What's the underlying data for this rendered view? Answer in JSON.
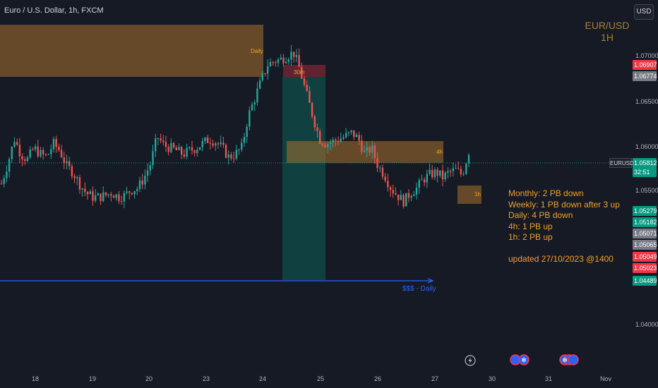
{
  "header": {
    "symbol_title": "Euro / U.S. Dollar, 1h, FXCM",
    "currency_button": "USD"
  },
  "watermark": {
    "line1": "EUR/USD",
    "line2": "1H"
  },
  "price_axis": {
    "ticks": [
      "1.07000",
      "1.06500",
      "1.06000",
      "1.05500",
      "1.04000"
    ],
    "tick_values": [
      1.07,
      1.065,
      1.06,
      1.055,
      1.04
    ]
  },
  "price_tags": [
    {
      "text": "1.06907",
      "color": "#f23645"
    },
    {
      "text": "1.06774",
      "color": "#787b86"
    },
    {
      "text": "1.05812",
      "color": "#089981"
    },
    {
      "text": "32:51",
      "color": "#089981"
    },
    {
      "text": "1.05279",
      "color": "#089981"
    },
    {
      "text": "1.05182",
      "color": "#089981"
    },
    {
      "text": "1.05071",
      "color": "#787b86"
    },
    {
      "text": "1.05065",
      "color": "#787b86"
    },
    {
      "text": "1.05049",
      "color": "#f23645"
    },
    {
      "text": "1.05023",
      "color": "#f23645"
    },
    {
      "text": "1.04489",
      "color": "#089981"
    }
  ],
  "pair_label": "EURUSD",
  "time_axis": [
    "18",
    "19",
    "20",
    "23",
    "24",
    "25",
    "26",
    "27",
    "30",
    "31",
    "Nov"
  ],
  "zones": {
    "daily": "Daily",
    "m30": "30m",
    "h4": "4h",
    "h1": "1h"
  },
  "liquidity_label": "$$$ - Daily",
  "notes": {
    "monthly": "Monthly: 2 PB down",
    "weekly": "Weekly: 1 PB down after 3 up",
    "daily": "Daily: 4 PB down",
    "h4": "4h: 1 PB up",
    "h1": "1h: 2 PB up",
    "updated": "updated 27/10/2023 @1400"
  },
  "colors": {
    "background": "#161a25",
    "up": "#26a69a",
    "down": "#ef5350",
    "zone": "#a7712c",
    "liquidity_line": "#2962ff",
    "note_text": "#f0a027"
  },
  "chart_data": {
    "type": "candlestick",
    "ylim": [
      1.0385,
      1.0723
    ],
    "x_labels": [
      "18",
      "19",
      "20",
      "23",
      "24",
      "25",
      "26",
      "27",
      "30",
      "31",
      "Nov"
    ],
    "close_path": [
      1.0545,
      1.0568,
      1.0595,
      1.0578,
      1.0572,
      1.0585,
      1.0578,
      1.0575,
      1.059,
      1.0582,
      1.0565,
      1.0558,
      1.0545,
      1.0535,
      1.053,
      1.053,
      1.0532,
      1.0535,
      1.053,
      1.0532,
      1.0538,
      1.054,
      1.0552,
      1.0568,
      1.0598,
      1.0588,
      1.0585,
      1.0582,
      1.0578,
      1.0582,
      1.0585,
      1.059,
      1.0595,
      1.0592,
      1.0585,
      1.0575,
      1.0578,
      1.0585,
      1.062,
      1.064,
      1.066,
      1.0678,
      1.0682,
      1.0684,
      1.0688,
      1.0692,
      1.0672,
      1.0645,
      1.062,
      1.0595,
      1.059,
      1.0592,
      1.0595,
      1.0598,
      1.0602,
      1.0595,
      1.0578,
      1.0585,
      1.0565,
      1.0555,
      1.054,
      1.0532,
      1.0525,
      1.0535,
      1.054,
      1.055,
      1.0555,
      1.0558,
      1.0552,
      1.0558,
      1.056,
      1.0555,
      1.0581
    ],
    "last_price": 1.05812,
    "horizontal_level": 1.04489
  }
}
